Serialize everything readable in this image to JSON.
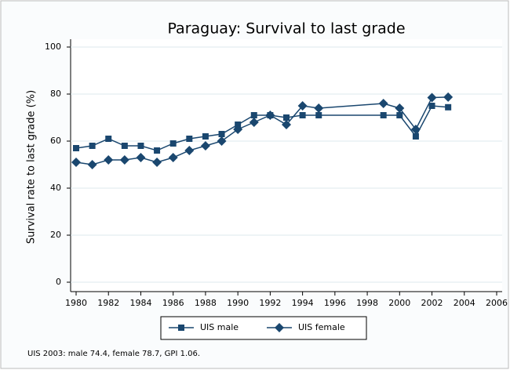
{
  "chart_data": {
    "type": "line",
    "title": "Paraguay: Survival to last grade",
    "y_label": "Survival rate to last grade (%)",
    "note": "UIS 2003: male 74.4, female 78.7, GPI 1.06.",
    "x": [
      1980,
      1981,
      1982,
      1983,
      1984,
      1985,
      1986,
      1987,
      1988,
      1989,
      1990,
      1991,
      1992,
      1993,
      1994,
      1995,
      1999,
      2000,
      2001,
      2002,
      2003
    ],
    "series": [
      {
        "name": "UIS male",
        "color": "#1a476f",
        "marker": "square",
        "values": [
          57,
          58,
          61,
          58,
          58,
          56,
          59,
          61,
          62,
          63,
          67,
          71,
          71,
          70,
          71,
          71,
          71,
          71,
          62,
          75,
          74.4
        ]
      },
      {
        "name": "UIS female",
        "color": "#1a476f",
        "marker": "diamond",
        "values": [
          51,
          50,
          52,
          52,
          53,
          51,
          53,
          56,
          58,
          60,
          65,
          68,
          71,
          67,
          75,
          74,
          76,
          74,
          65,
          78.5,
          78.7
        ]
      }
    ],
    "xlim": [
      1980,
      2006
    ],
    "xticks": [
      1980,
      1982,
      1984,
      1986,
      1988,
      1990,
      1992,
      1994,
      1996,
      1998,
      2000,
      2002,
      2004,
      2006
    ],
    "ylim": [
      0,
      100
    ],
    "yticks": [
      0,
      20,
      40,
      60,
      80,
      100
    ],
    "grid": true,
    "legend": "bottom"
  }
}
